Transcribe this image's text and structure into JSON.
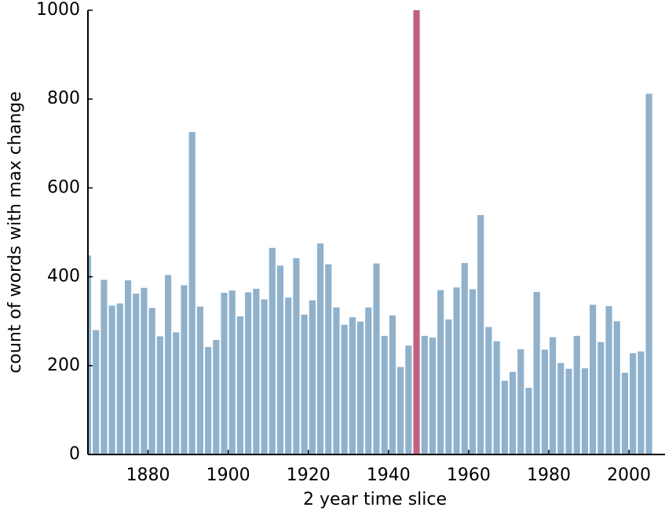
{
  "chart_data": {
    "type": "bar",
    "title": "",
    "xlabel": "2 year time slice",
    "ylabel": "count of words with max change",
    "xlim": [
      1865,
      2009
    ],
    "ylim": [
      0,
      1000
    ],
    "x_ticks": [
      1880,
      1900,
      1920,
      1940,
      1960,
      1980,
      2000
    ],
    "y_ticks": [
      0,
      200,
      400,
      600,
      800,
      1000
    ],
    "x_tick_labels": [
      "1880",
      "1900",
      "1920",
      "1940",
      "1960",
      "1980",
      "2000"
    ],
    "y_tick_labels": [
      "0",
      "200",
      "400",
      "600",
      "800",
      "1000"
    ],
    "grid": false,
    "bar_color": "#8fb1cc",
    "highlight_color": "#c0607e",
    "highlight_x": 1947,
    "x": [
      1865,
      1867,
      1869,
      1871,
      1873,
      1875,
      1877,
      1879,
      1881,
      1883,
      1885,
      1887,
      1889,
      1891,
      1893,
      1895,
      1897,
      1899,
      1901,
      1903,
      1905,
      1907,
      1909,
      1911,
      1913,
      1915,
      1917,
      1919,
      1921,
      1923,
      1925,
      1927,
      1929,
      1931,
      1933,
      1935,
      1937,
      1939,
      1941,
      1943,
      1945,
      1947,
      1949,
      1951,
      1953,
      1955,
      1957,
      1959,
      1961,
      1963,
      1965,
      1967,
      1969,
      1971,
      1973,
      1975,
      1977,
      1979,
      1981,
      1983,
      1985,
      1987,
      1989,
      1991,
      1993,
      1995,
      1997,
      1999,
      2001,
      2003,
      2005
    ],
    "values": [
      448,
      280,
      393,
      335,
      340,
      392,
      362,
      375,
      330,
      266,
      404,
      275,
      381,
      726,
      333,
      242,
      258,
      364,
      369,
      311,
      365,
      373,
      349,
      465,
      425,
      353,
      442,
      315,
      347,
      475,
      428,
      331,
      292,
      309,
      299,
      331,
      430,
      267,
      313,
      197,
      245,
      1000,
      267,
      263,
      370,
      304,
      376,
      431,
      372,
      539,
      287,
      255,
      166,
      186,
      237,
      150,
      366,
      236,
      264,
      206,
      193,
      267,
      194,
      337,
      253,
      334,
      300,
      184,
      228,
      232,
      812
    ]
  }
}
